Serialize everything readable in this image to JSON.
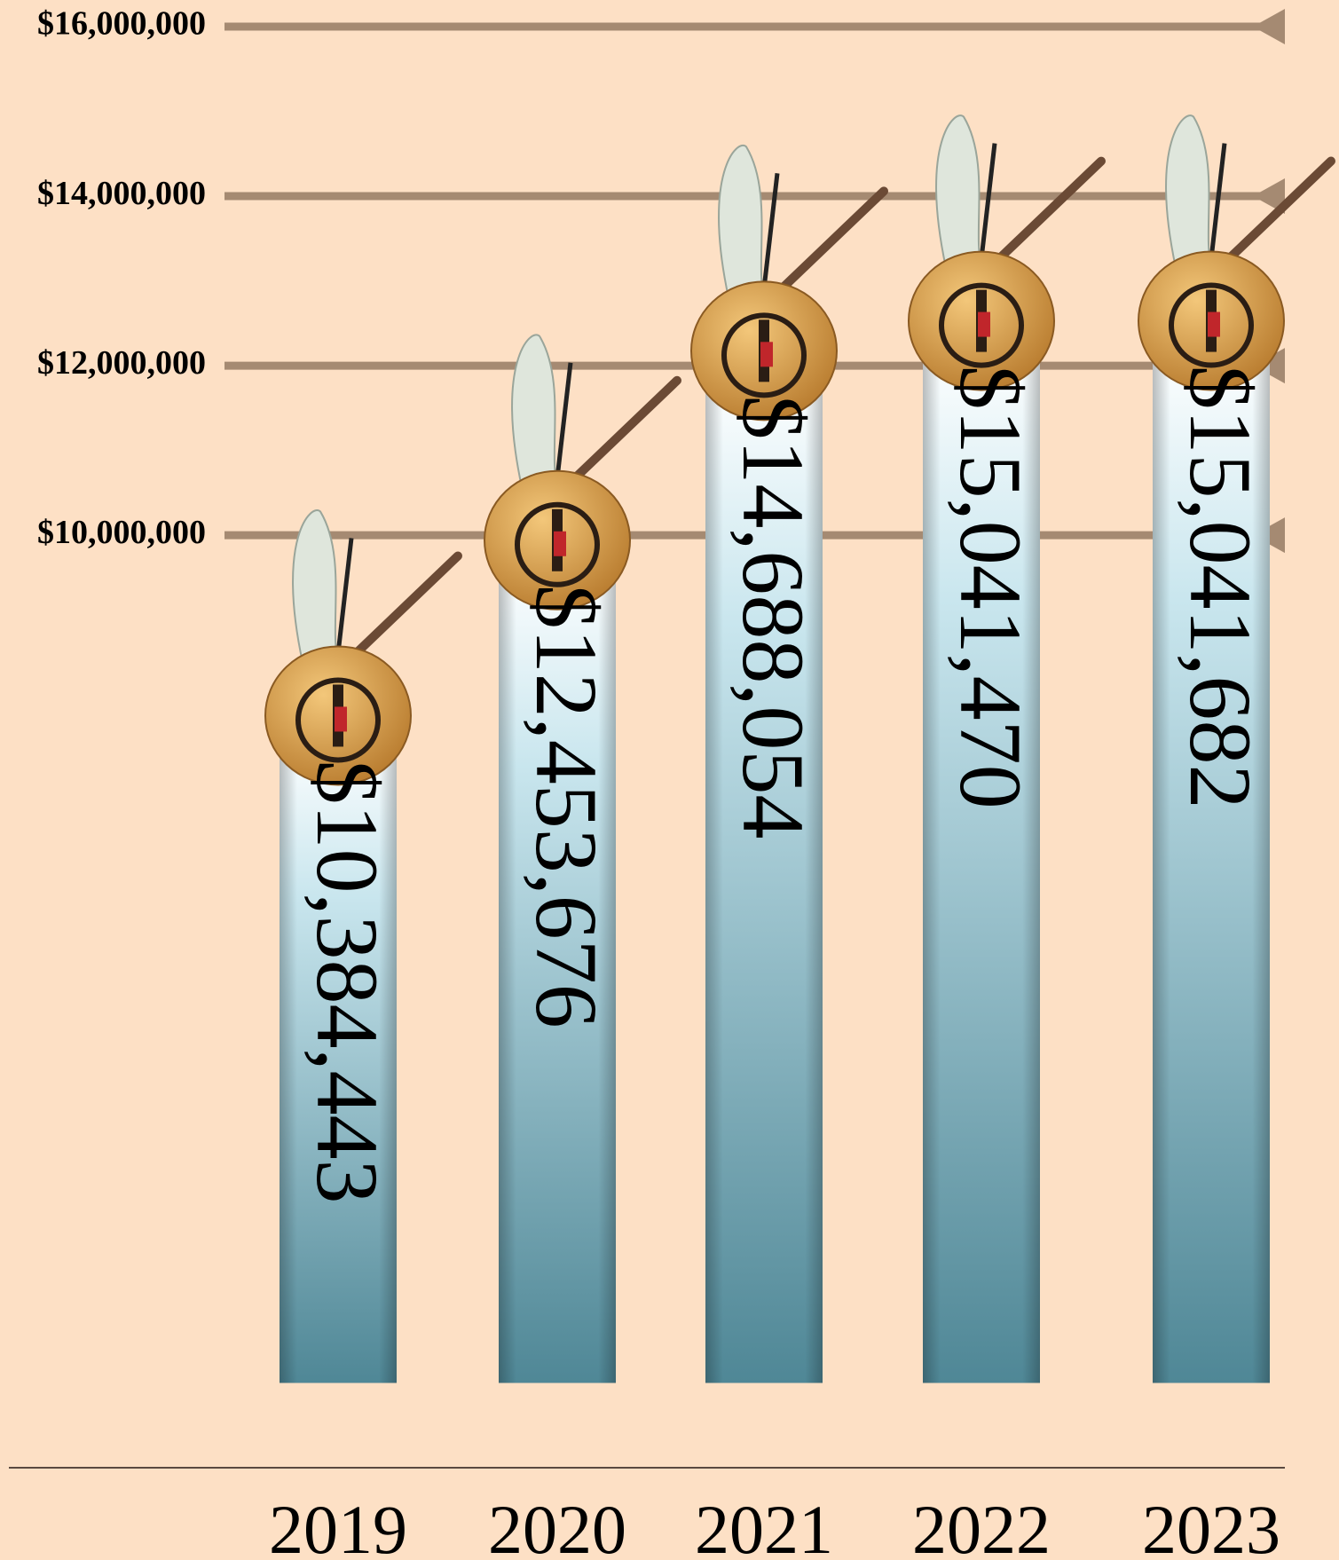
{
  "chart_data": {
    "type": "bar",
    "categories": [
      "2019",
      "2020",
      "2021",
      "2022",
      "2023"
    ],
    "values": [
      10384443,
      12453676,
      14688054,
      15041470,
      15041682
    ],
    "value_labels": [
      "$10,384,443",
      "$12,453,676",
      "$14,688,054",
      "$15,041,470",
      "$15,041,682"
    ],
    "ylim": [
      -1000000,
      16000000
    ],
    "yticks": [
      {
        "value": 10000000,
        "label": "$10,000,000"
      },
      {
        "value": 12000000,
        "label": "$12,000,000"
      },
      {
        "value": 14000000,
        "label": "$14,000,000"
      },
      {
        "value": 16000000,
        "label": "$16,000,000"
      }
    ],
    "grid": true,
    "color": "#4f8796"
  }
}
